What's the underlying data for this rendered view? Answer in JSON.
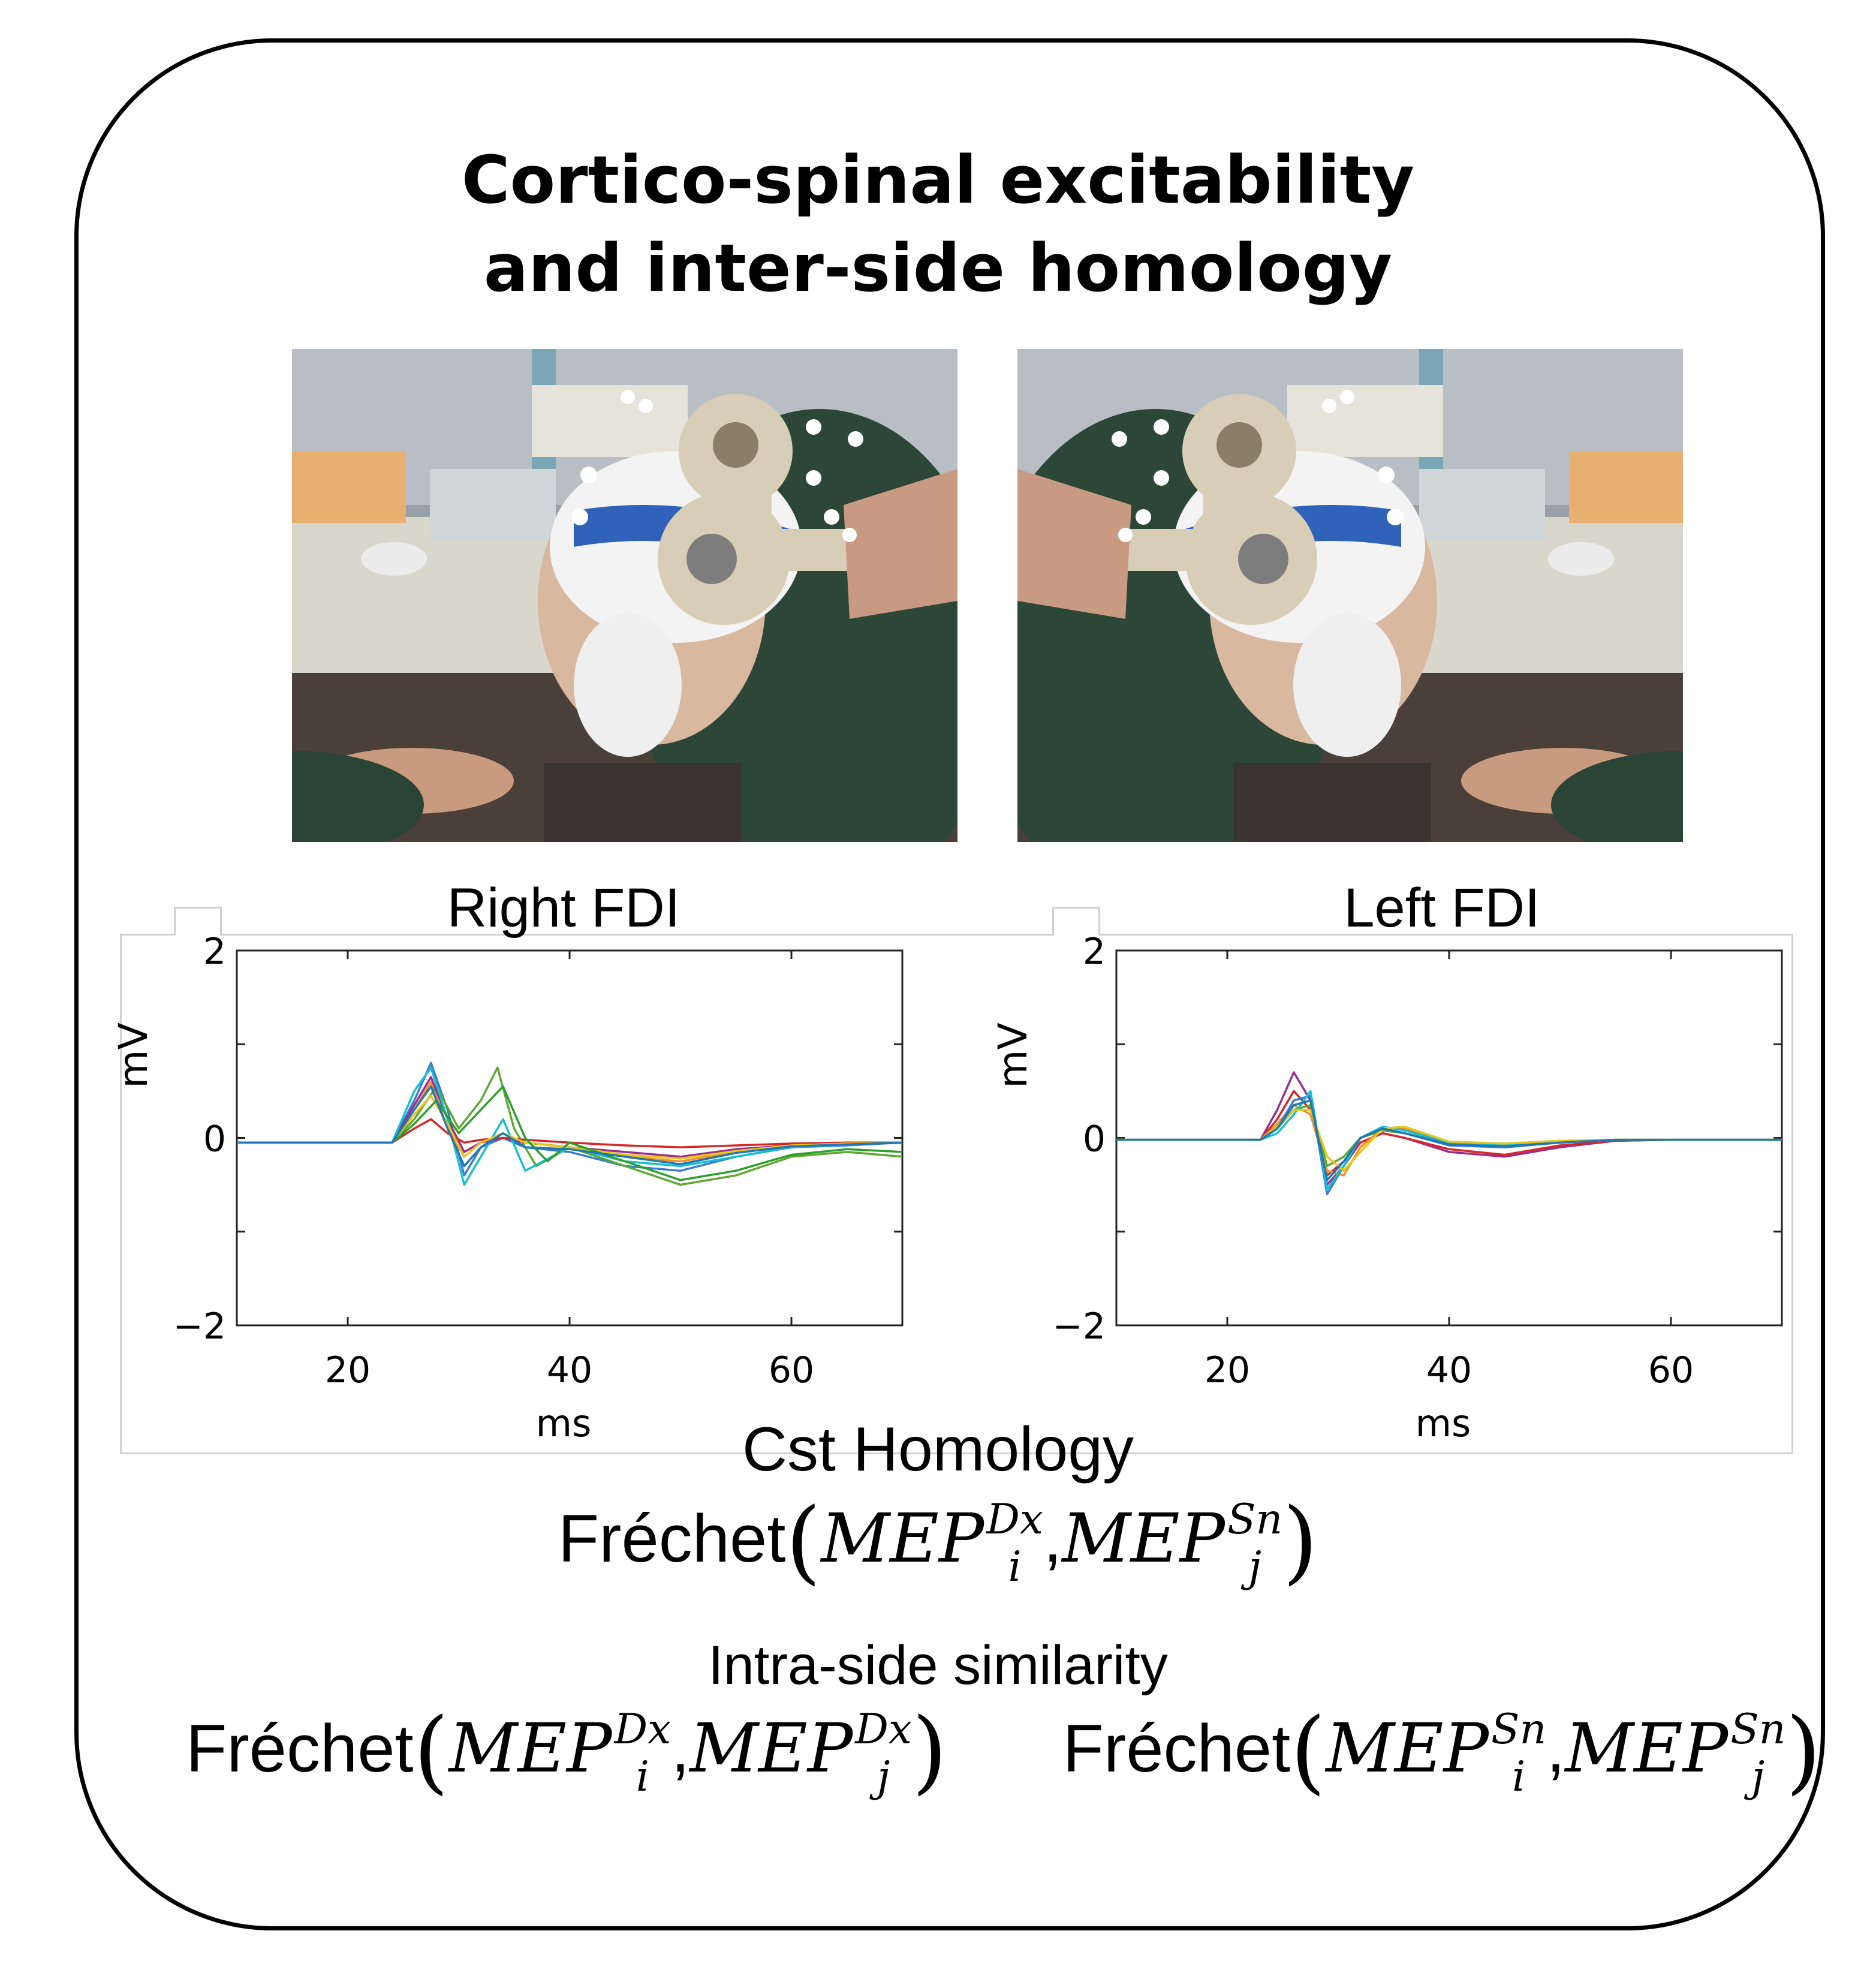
{
  "title": {
    "line1": "Cortico-spinal excitability",
    "line2": "and inter-side homology"
  },
  "photos": {
    "left_alt": "Subject with TMS coil over left hemisphere",
    "right_alt": "Subject with TMS coil over right hemisphere"
  },
  "chart_data": [
    {
      "type": "line",
      "title": "Right FDI",
      "xlabel": "ms",
      "ylabel": "mV",
      "xlim": [
        10,
        70
      ],
      "ylim": [
        -2,
        2
      ],
      "xticks": [
        20,
        40,
        60
      ],
      "yticks": [
        -2,
        0,
        2
      ],
      "ytick_labels": [
        "−2",
        "0",
        "2"
      ],
      "series": [
        {
          "color": "#3a7bd5",
          "x": [
            10,
            24,
            26,
            27.5,
            29,
            30.5,
            32,
            34,
            36,
            40,
            45,
            50,
            55,
            60,
            65,
            70
          ],
          "y": [
            -0.05,
            -0.05,
            0.4,
            0.8,
            0.3,
            -0.4,
            -0.1,
            0.0,
            -0.1,
            -0.15,
            -0.3,
            -0.35,
            -0.2,
            -0.1,
            -0.08,
            -0.05
          ]
        },
        {
          "color": "#f28e2b",
          "x": [
            10,
            24,
            26,
            27.5,
            29,
            30.5,
            32,
            34,
            36,
            40,
            45,
            50,
            55,
            60,
            65,
            70
          ],
          "y": [
            -0.05,
            -0.05,
            0.3,
            0.6,
            0.1,
            -0.2,
            -0.05,
            0.0,
            -0.05,
            -0.1,
            -0.2,
            -0.25,
            -0.15,
            -0.08,
            -0.06,
            -0.05
          ]
        },
        {
          "color": "#5da831",
          "x": [
            10,
            24,
            26,
            28,
            30,
            32,
            33.5,
            35,
            37,
            40,
            45,
            50,
            55,
            60,
            65,
            70
          ],
          "y": [
            -0.05,
            -0.05,
            0.2,
            0.55,
            0.1,
            0.4,
            0.75,
            0.1,
            -0.3,
            -0.1,
            -0.3,
            -0.5,
            -0.4,
            -0.2,
            -0.15,
            -0.2
          ]
        },
        {
          "color": "#9b2d8f",
          "x": [
            10,
            24,
            26,
            27.5,
            29,
            30.5,
            32,
            34,
            36,
            40,
            45,
            50,
            55,
            60,
            65,
            70
          ],
          "y": [
            -0.05,
            -0.05,
            0.35,
            0.65,
            0.2,
            -0.15,
            -0.05,
            0.0,
            -0.05,
            -0.1,
            -0.15,
            -0.2,
            -0.12,
            -0.08,
            -0.06,
            -0.05
          ]
        },
        {
          "color": "#17becf",
          "x": [
            10,
            24,
            26,
            27.5,
            29,
            30.5,
            32,
            34,
            36,
            40,
            45,
            50,
            55,
            60,
            65,
            70
          ],
          "y": [
            -0.05,
            -0.05,
            0.5,
            0.75,
            0.2,
            -0.5,
            -0.2,
            0.2,
            -0.35,
            -0.1,
            -0.25,
            -0.3,
            -0.2,
            -0.1,
            -0.07,
            -0.05
          ]
        },
        {
          "color": "#d62728",
          "x": [
            10,
            24,
            26,
            27.5,
            29,
            30.5,
            32,
            34,
            36,
            40,
            45,
            50,
            55,
            60,
            65,
            70
          ],
          "y": [
            -0.05,
            -0.05,
            0.1,
            0.2,
            0.05,
            -0.05,
            -0.02,
            0.0,
            -0.02,
            -0.05,
            -0.08,
            -0.1,
            -0.08,
            -0.06,
            -0.05,
            -0.05
          ]
        },
        {
          "color": "#e6c619",
          "x": [
            10,
            24,
            26,
            27.5,
            29,
            30.5,
            32,
            34,
            36,
            40,
            45,
            50,
            55,
            60,
            65,
            70
          ],
          "y": [
            -0.05,
            -0.05,
            0.25,
            0.45,
            0.15,
            -0.2,
            -0.05,
            0.05,
            -0.05,
            -0.1,
            -0.18,
            -0.22,
            -0.14,
            -0.08,
            -0.06,
            -0.05
          ]
        },
        {
          "color": "#2ca02c",
          "x": [
            10,
            24,
            26,
            28,
            30,
            32,
            34,
            36,
            38,
            40,
            45,
            50,
            55,
            60,
            65,
            70
          ],
          "y": [
            -0.05,
            -0.05,
            0.15,
            0.4,
            0.05,
            0.3,
            0.55,
            0.0,
            -0.25,
            -0.05,
            -0.25,
            -0.45,
            -0.35,
            -0.18,
            -0.12,
            -0.15
          ]
        },
        {
          "color": "#1f77b4",
          "x": [
            10,
            24,
            26,
            27.5,
            29,
            30.5,
            32,
            34,
            36,
            40,
            45,
            50,
            55,
            60,
            65,
            70
          ],
          "y": [
            -0.05,
            -0.05,
            0.3,
            0.55,
            0.1,
            -0.3,
            -0.1,
            0.05,
            -0.1,
            -0.12,
            -0.2,
            -0.28,
            -0.16,
            -0.09,
            -0.07,
            -0.05
          ]
        }
      ]
    },
    {
      "type": "line",
      "title": "Left FDI",
      "xlabel": "ms",
      "ylabel": "mV",
      "xlim": [
        10,
        70
      ],
      "ylim": [
        -2,
        2
      ],
      "xticks": [
        20,
        40,
        60
      ],
      "yticks": [
        -2,
        0,
        2
      ],
      "ytick_labels": [
        "−2",
        "0",
        "2"
      ],
      "series": [
        {
          "color": "#9b2d8f",
          "x": [
            10,
            23,
            24.5,
            26,
            27.5,
            29,
            30.5,
            32,
            34,
            36,
            40,
            45,
            50,
            55,
            60,
            70
          ],
          "y": [
            -0.02,
            -0.02,
            0.3,
            0.7,
            0.4,
            -0.5,
            -0.3,
            -0.05,
            0.05,
            0.0,
            -0.15,
            -0.2,
            -0.1,
            -0.03,
            -0.02,
            -0.02
          ]
        },
        {
          "color": "#d62728",
          "x": [
            10,
            23,
            24.5,
            26,
            27.5,
            29,
            30.5,
            32,
            34,
            36,
            40,
            45,
            50,
            55,
            60,
            70
          ],
          "y": [
            -0.02,
            -0.02,
            0.2,
            0.5,
            0.3,
            -0.4,
            -0.25,
            -0.05,
            0.05,
            0.0,
            -0.12,
            -0.18,
            -0.08,
            -0.03,
            -0.02,
            -0.02
          ]
        },
        {
          "color": "#f28e2b",
          "x": [
            10,
            23,
            24.5,
            26,
            27.5,
            29,
            30.5,
            32,
            34,
            36,
            40,
            45,
            50,
            55,
            60,
            70
          ],
          "y": [
            -0.02,
            -0.02,
            0.15,
            0.35,
            0.25,
            -0.35,
            -0.4,
            -0.1,
            0.1,
            0.1,
            -0.05,
            -0.1,
            -0.05,
            -0.02,
            -0.02,
            -0.02
          ]
        },
        {
          "color": "#3a7bd5",
          "x": [
            10,
            23,
            24.5,
            26,
            27.5,
            29,
            30.5,
            32,
            34,
            36,
            40,
            45,
            50,
            55,
            60,
            70
          ],
          "y": [
            -0.02,
            -0.02,
            0.1,
            0.4,
            0.45,
            -0.6,
            -0.3,
            0.0,
            0.1,
            0.05,
            -0.08,
            -0.1,
            -0.05,
            -0.02,
            -0.02,
            -0.02
          ]
        },
        {
          "color": "#5da831",
          "x": [
            10,
            23,
            24.5,
            26,
            27.5,
            29,
            30.5,
            32,
            34,
            36,
            40,
            45,
            50,
            55,
            60,
            70
          ],
          "y": [
            -0.02,
            -0.02,
            0.1,
            0.3,
            0.35,
            -0.3,
            -0.2,
            0.0,
            0.08,
            0.05,
            -0.06,
            -0.08,
            -0.04,
            -0.02,
            -0.02,
            -0.02
          ]
        },
        {
          "color": "#17becf",
          "x": [
            10,
            23,
            24.5,
            26,
            27.5,
            29,
            30.5,
            32,
            34,
            36,
            40,
            45,
            50,
            55,
            60,
            70
          ],
          "y": [
            -0.02,
            -0.02,
            0.05,
            0.25,
            0.5,
            -0.55,
            -0.3,
            0.0,
            0.12,
            0.08,
            -0.05,
            -0.07,
            -0.04,
            -0.02,
            -0.02,
            -0.02
          ]
        },
        {
          "color": "#e6c619",
          "x": [
            10,
            23,
            24.5,
            26,
            27.5,
            29,
            30.5,
            32,
            34,
            36,
            40,
            45,
            50,
            55,
            60,
            70
          ],
          "y": [
            -0.02,
            -0.02,
            0.12,
            0.3,
            0.3,
            -0.2,
            -0.35,
            -0.15,
            0.1,
            0.12,
            -0.04,
            -0.06,
            -0.03,
            -0.02,
            -0.02,
            -0.02
          ]
        },
        {
          "color": "#1f77b4",
          "x": [
            10,
            23,
            24.5,
            26,
            27.5,
            29,
            30.5,
            32,
            34,
            36,
            40,
            45,
            50,
            55,
            60,
            70
          ],
          "y": [
            -0.02,
            -0.02,
            0.1,
            0.35,
            0.4,
            -0.45,
            -0.25,
            0.0,
            0.1,
            0.05,
            -0.07,
            -0.09,
            -0.05,
            -0.02,
            -0.02,
            -0.02
          ]
        }
      ]
    }
  ],
  "homology": {
    "heading": "Cst Homology",
    "fn": "Fréchet",
    "term1": "MEP",
    "term1_sup": "Dx",
    "term1_sub": "i",
    "sep": ",",
    "term2": "MEP",
    "term2_sup": "Sn",
    "term2_sub": "j"
  },
  "intra": {
    "heading": "Intra-side similarity",
    "left": {
      "fn": "Fréchet",
      "t1": "MEP",
      "t1_sup": "Dx",
      "t1_sub": "i",
      "sep": ",",
      "t2": "MEP",
      "t2_sup": "Dx",
      "t2_sub": "j"
    },
    "right": {
      "fn": "Fréchet",
      "t1": "MEP",
      "t1_sup": "Sn",
      "t1_sub": "i",
      "sep": ",",
      "t2": "MEP",
      "t2_sup": "Sn",
      "t2_sub": "j"
    }
  }
}
